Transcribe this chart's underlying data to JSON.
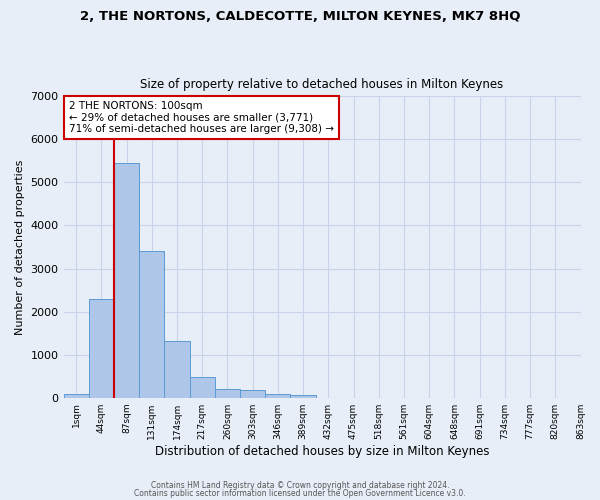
{
  "title": "2, THE NORTONS, CALDECOTTE, MILTON KEYNES, MK7 8HQ",
  "subtitle": "Size of property relative to detached houses in Milton Keynes",
  "xlabel": "Distribution of detached houses by size in Milton Keynes",
  "ylabel": "Number of detached properties",
  "footer1": "Contains HM Land Registry data © Crown copyright and database right 2024.",
  "footer2": "Contains public sector information licensed under the Open Government Licence v3.0.",
  "annotation_line1": "2 THE NORTONS: 100sqm",
  "annotation_line2": "← 29% of detached houses are smaller (3,771)",
  "annotation_line3": "71% of semi-detached houses are larger (9,308) →",
  "bar_values": [
    75,
    2300,
    5450,
    3400,
    1310,
    490,
    200,
    175,
    95,
    65,
    0,
    0,
    0,
    0,
    0,
    0,
    0,
    0,
    0,
    0
  ],
  "categories": [
    "1sqm",
    "44sqm",
    "87sqm",
    "131sqm",
    "174sqm",
    "217sqm",
    "260sqm",
    "303sqm",
    "346sqm",
    "389sqm",
    "432sqm",
    "475sqm",
    "518sqm",
    "561sqm",
    "604sqm",
    "648sqm",
    "691sqm",
    "734sqm",
    "777sqm",
    "820sqm",
    "863sqm"
  ],
  "bar_color": "#aec6e8",
  "bar_edge_color": "#5b9bd5",
  "vline_x": 1.5,
  "vline_color": "#cc0000",
  "annotation_box_color": "#cc0000",
  "ylim": [
    0,
    7000
  ],
  "yticks": [
    0,
    1000,
    2000,
    3000,
    4000,
    5000,
    6000,
    7000
  ],
  "grid_color": "#c8d4e8",
  "bg_color": "#e8eef8"
}
